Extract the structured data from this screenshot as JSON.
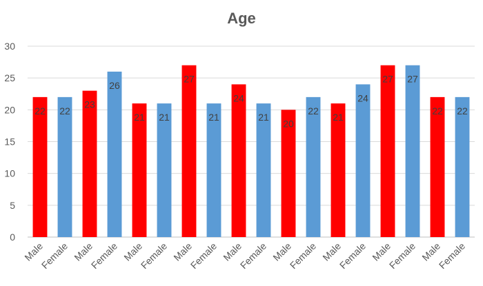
{
  "chart_data": {
    "type": "bar",
    "title": "Age",
    "xlabel": "",
    "ylabel": "",
    "ylim": [
      0,
      30
    ],
    "yticks": [
      0,
      5,
      10,
      15,
      20,
      25,
      30
    ],
    "grid": true,
    "legend": "none",
    "categories": [
      "Male",
      "Female",
      "Male",
      "Female",
      "Male",
      "Female",
      "Male",
      "Female",
      "Male",
      "Female",
      "Male",
      "Female",
      "Male",
      "Female",
      "Male",
      "Female",
      "Male",
      "Female"
    ],
    "values": [
      22,
      22,
      23,
      26,
      21,
      21,
      27,
      21,
      24,
      21,
      20,
      22,
      21,
      24,
      27,
      27,
      22,
      22
    ],
    "colors": {
      "Male": "#ff0000",
      "Female": "#5b9bd5"
    }
  }
}
